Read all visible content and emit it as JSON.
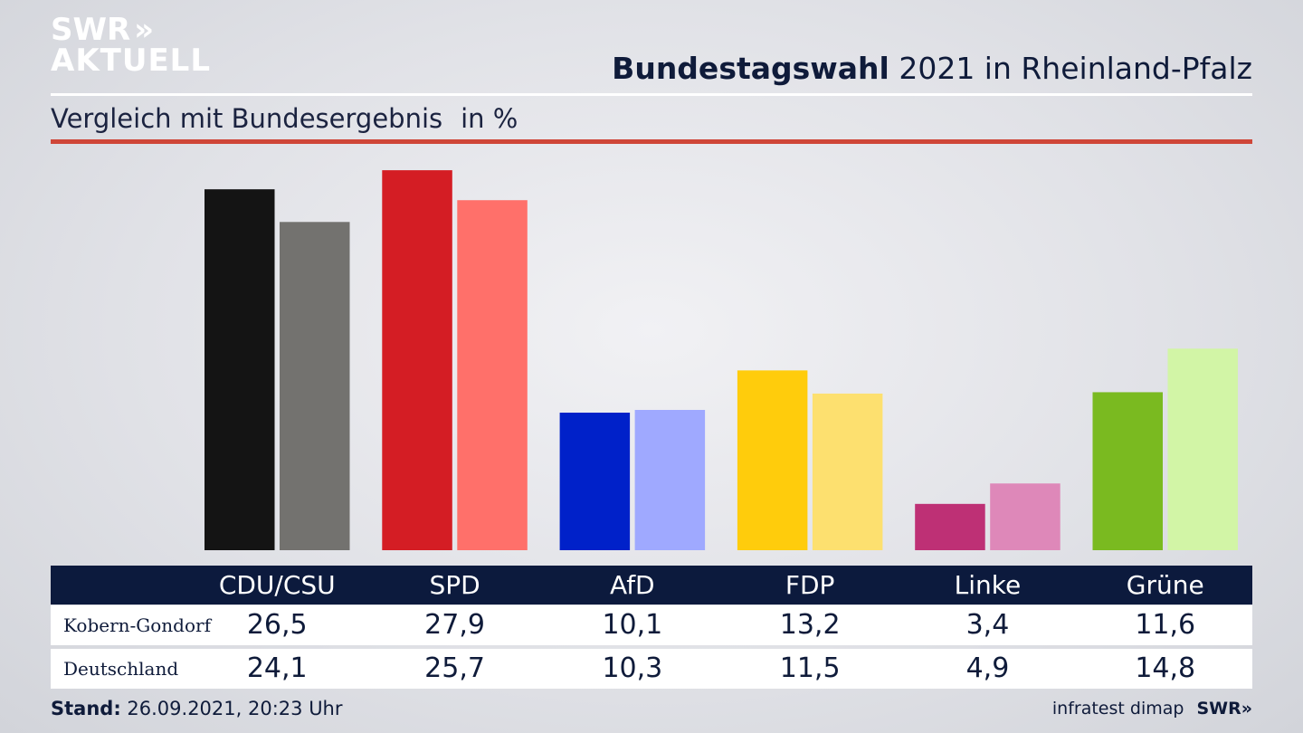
{
  "brand": {
    "logo_line1": "SWR",
    "logo_line2": "AKTUELL",
    "logo_chevron": "»"
  },
  "header": {
    "title_bold": "Bundestagswahl",
    "title_rest": "2021 in Rheinland-Pfalz",
    "subtitle": "Vergleich mit Bundesergebnis",
    "unit": "in %"
  },
  "colors": {
    "rule_red": "#cf4638",
    "table_header": "#0c1a3d"
  },
  "chart_data": {
    "type": "bar",
    "categories": [
      "CDU/CSU",
      "SPD",
      "AfD",
      "FDP",
      "Linke",
      "Grüne"
    ],
    "series": [
      {
        "name": "Kobern-Gondorf",
        "values": [
          26.5,
          27.9,
          10.1,
          13.2,
          3.4,
          11.6
        ],
        "colors": [
          "#141414",
          "#d41d24",
          "#0021c9",
          "#ffcc0c",
          "#be3075",
          "#7aba20"
        ]
      },
      {
        "name": "Deutschland",
        "values": [
          24.1,
          25.7,
          10.3,
          11.5,
          4.9,
          14.8
        ],
        "colors": [
          "#73726f",
          "#ff706a",
          "#9fa9ff",
          "#fde06f",
          "#de88b9",
          "#d2f5a6"
        ]
      }
    ],
    "ylim": [
      0,
      28
    ],
    "grid": false,
    "legend": "table below chart"
  },
  "table": {
    "headers": [
      "CDU/CSU",
      "SPD",
      "AfD",
      "FDP",
      "Linke",
      "Grüne"
    ],
    "rows": [
      {
        "label": "Kobern-Gondorf",
        "values": [
          "26,5",
          "27,9",
          "10,1",
          "13,2",
          "3,4",
          "11,6"
        ]
      },
      {
        "label": "Deutschland",
        "values": [
          "24,1",
          "25,7",
          "10,3",
          "11,5",
          "4,9",
          "14,8"
        ]
      }
    ]
  },
  "footer": {
    "stand_label": "Stand:",
    "stand_value": "26.09.2021, 20:23 Uhr",
    "source": "infratest dimap",
    "brand": "SWR",
    "brand_chevron": "»"
  }
}
